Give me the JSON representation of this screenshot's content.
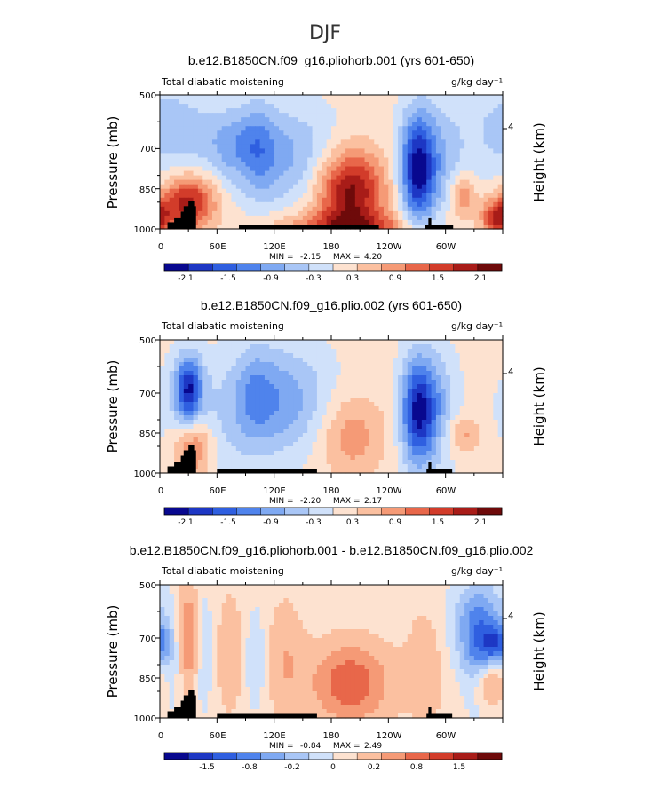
{
  "page_title": "DJF",
  "palette": [
    "#08088f",
    "#1d37c4",
    "#2f5fe0",
    "#4f83ec",
    "#7fa9f2",
    "#a9c6f6",
    "#d0e1fa",
    "#fde2d0",
    "#fbc0a0",
    "#f59a76",
    "#e8674a",
    "#d23c2a",
    "#a81c18",
    "#6e0a0a"
  ],
  "chart_data": [
    {
      "type": "heatmap",
      "title": "b.e12.B1850CN.f09_g16.pliohorb.001 (yrs 601-650)",
      "subtitle_left": "Total diabatic moistening",
      "units": "g/kg day⁻¹",
      "ylabel": "Pressure (mb)",
      "ylabel_right": "Height (km)",
      "right_ticks": [
        "4"
      ],
      "x_ticks": [
        "0",
        "60E",
        "120E",
        "180",
        "120W",
        "60W"
      ],
      "y_ticks": [
        "500",
        "700",
        "850",
        "1000"
      ],
      "stats": {
        "min_label": "MIN =",
        "min": "-2.15",
        "max_label": "MAX =",
        "max": "4.20"
      },
      "colorbar_labels": [
        "-2.1",
        "-1.5",
        "-0.9",
        "-0.3",
        "0.3",
        "0.9",
        "1.5",
        "2.1"
      ],
      "range": 2.4,
      "blobs": [
        {
          "lon": 130,
          "p": 730,
          "wl": 40,
          "wp": 130,
          "a": -0.9
        },
        {
          "lon": 104,
          "p": 700,
          "wl": 12,
          "wp": 130,
          "a": -0.5
        },
        {
          "lon": 77,
          "p": 680,
          "wl": 22,
          "wp": 90,
          "a": -0.7
        },
        {
          "lon": 270,
          "p": 780,
          "wl": 12,
          "wp": 140,
          "a": -1.9
        },
        {
          "lon": 285,
          "p": 760,
          "wl": 20,
          "wp": 150,
          "a": -0.8
        },
        {
          "lon": 200,
          "p": 860,
          "wl": 25,
          "wp": 110,
          "a": 2.1
        },
        {
          "lon": 195,
          "p": 990,
          "wl": 50,
          "wp": 40,
          "a": 1.2
        },
        {
          "lon": 30,
          "p": 900,
          "wl": 20,
          "wp": 70,
          "a": 1.8
        },
        {
          "lon": 355,
          "p": 960,
          "wl": 12,
          "wp": 50,
          "a": 1.6
        },
        {
          "lon": 318,
          "p": 875,
          "wl": 10,
          "wp": 55,
          "a": 1.0
        },
        {
          "lon": 345,
          "p": 640,
          "wl": 40,
          "wp": 160,
          "a": -0.35
        },
        {
          "lon": 20,
          "p": 620,
          "wl": 25,
          "wp": 110,
          "a": -0.4
        }
      ]
    },
    {
      "type": "heatmap",
      "title": "b.e12.B1850CN.f09_g16.plio.002 (yrs 601-650)",
      "subtitle_left": "Total diabatic moistening",
      "units": "g/kg day⁻¹",
      "ylabel": "Pressure (mb)",
      "ylabel_right": "Height (km)",
      "right_ticks": [
        "4"
      ],
      "x_ticks": [
        "0",
        "60E",
        "120E",
        "180",
        "120W",
        "60W"
      ],
      "y_ticks": [
        "500",
        "700",
        "850",
        "1000"
      ],
      "stats": {
        "min_label": "MIN =",
        "min": "-2.20",
        "max_label": "MAX =",
        "max": "2.17"
      },
      "colorbar_labels": [
        "-2.1",
        "-1.5",
        "-0.9",
        "-0.3",
        "0.3",
        "0.9",
        "1.5",
        "2.1"
      ],
      "range": 2.4,
      "blobs": [
        {
          "lon": 30,
          "p": 690,
          "wl": 10,
          "wp": 90,
          "a": -2.0
        },
        {
          "lon": 130,
          "p": 730,
          "wl": 35,
          "wp": 140,
          "a": -1.0
        },
        {
          "lon": 100,
          "p": 700,
          "wl": 15,
          "wp": 130,
          "a": -0.6
        },
        {
          "lon": 270,
          "p": 770,
          "wl": 12,
          "wp": 140,
          "a": -2.0
        },
        {
          "lon": 290,
          "p": 760,
          "wl": 15,
          "wp": 150,
          "a": -0.9
        },
        {
          "lon": 200,
          "p": 860,
          "wl": 25,
          "wp": 110,
          "a": 0.8
        },
        {
          "lon": 35,
          "p": 900,
          "wl": 15,
          "wp": 90,
          "a": 1.3
        },
        {
          "lon": 318,
          "p": 855,
          "wl": 15,
          "wp": 50,
          "a": 0.7
        },
        {
          "lon": 45,
          "p": 820,
          "wl": 35,
          "wp": 160,
          "a": -0.5
        }
      ]
    },
    {
      "type": "heatmap",
      "title": "b.e12.B1850CN.f09_g16.pliohorb.001 - b.e12.B1850CN.f09_g16.plio.002",
      "subtitle_left": "Total diabatic moistening",
      "units": "g/kg day⁻¹",
      "ylabel": "Pressure (mb)",
      "ylabel_right": "Height (km)",
      "right_ticks": [
        "4"
      ],
      "x_ticks": [
        "0",
        "60E",
        "120E",
        "180",
        "120W",
        "60W"
      ],
      "y_ticks": [
        "500",
        "700",
        "850",
        "1000"
      ],
      "stats": {
        "min_label": "MIN =",
        "min": "-0.84",
        "max_label": "MAX =",
        "max": "2.49"
      },
      "colorbar_labels": [
        "-1.5",
        "-0.8",
        "-0.2",
        "0",
        "0.2",
        "0.8",
        "1.5"
      ],
      "range": 1.9,
      "blobs": [
        {
          "lon": 30,
          "p": 700,
          "wl": 12,
          "wp": 140,
          "a": 0.9
        },
        {
          "lon": 15,
          "p": 760,
          "wl": 8,
          "wp": 150,
          "a": -0.5
        },
        {
          "lon": 45,
          "p": 730,
          "wl": 8,
          "wp": 160,
          "a": -0.6
        },
        {
          "lon": 75,
          "p": 760,
          "wl": 12,
          "wp": 160,
          "a": 0.4
        },
        {
          "lon": 100,
          "p": 780,
          "wl": 10,
          "wp": 150,
          "a": -0.4
        },
        {
          "lon": 130,
          "p": 780,
          "wl": 15,
          "wp": 160,
          "a": 0.4
        },
        {
          "lon": 200,
          "p": 870,
          "wl": 30,
          "wp": 110,
          "a": 0.9
        },
        {
          "lon": 280,
          "p": 800,
          "wl": 15,
          "wp": 160,
          "a": 0.35
        },
        {
          "lon": 335,
          "p": 780,
          "wl": 12,
          "wp": 140,
          "a": -0.6
        },
        {
          "lon": 335,
          "p": 650,
          "wl": 22,
          "wp": 120,
          "a": -0.8
        },
        {
          "lon": 345,
          "p": 870,
          "wl": 12,
          "wp": 60,
          "a": 0.8
        },
        {
          "lon": 355,
          "p": 720,
          "wl": 10,
          "wp": 50,
          "a": -1.0
        }
      ]
    }
  ]
}
